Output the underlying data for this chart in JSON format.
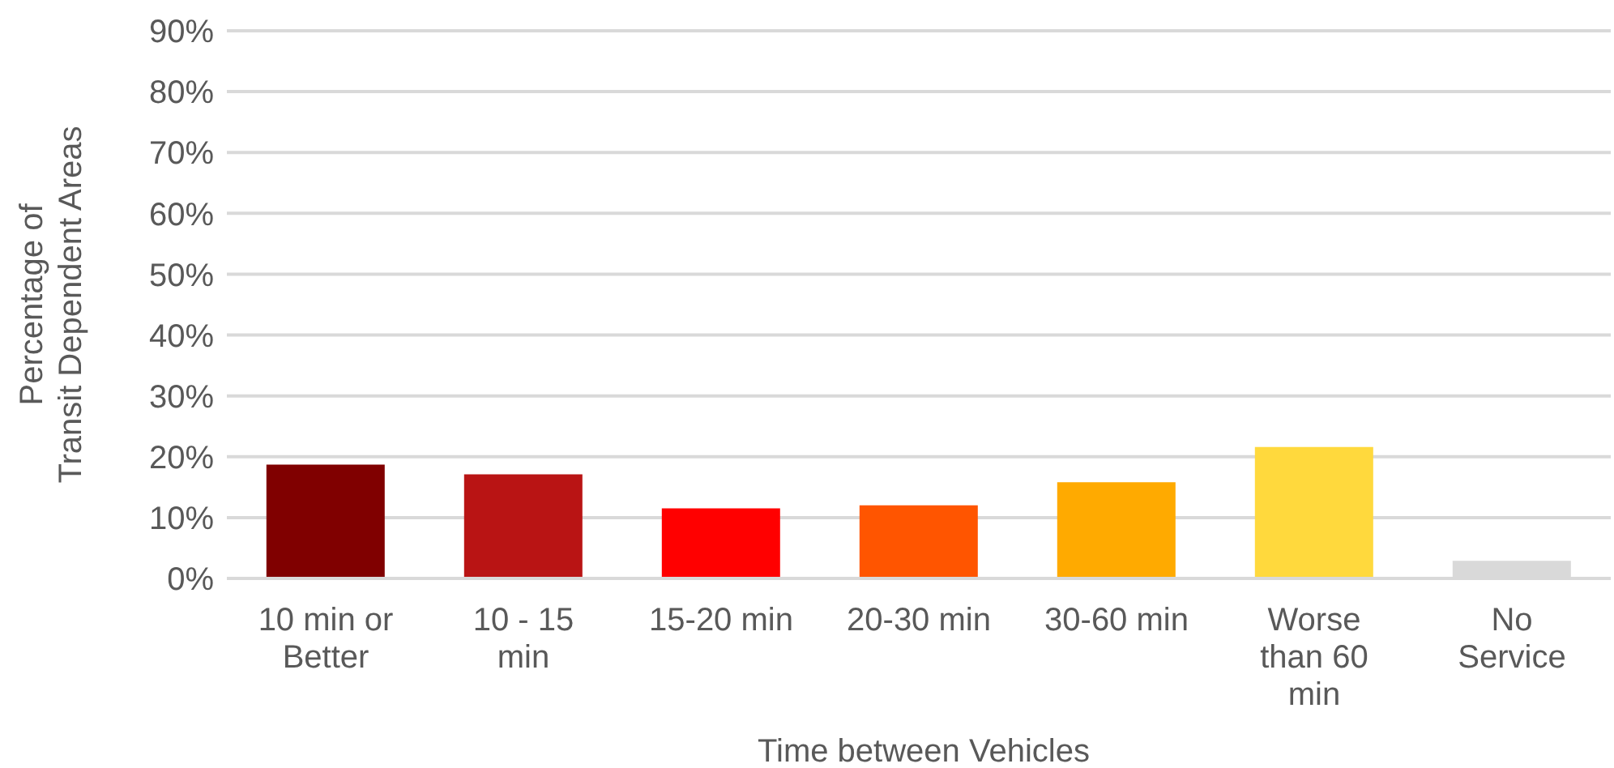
{
  "chart_data": {
    "type": "bar",
    "xlabel": "Time between Vehicles",
    "ylabel": "Percentage of\nTransit Dependent Areas",
    "categories": [
      "10 min or Better",
      "10 - 15 min",
      "15-20 min",
      "20-30 min",
      "30-60 min",
      "Worse than 60 min",
      "No Service"
    ],
    "values": [
      18.7,
      17.1,
      11.5,
      12.0,
      15.8,
      21.6,
      2.9
    ],
    "colors": [
      "#800000",
      "#b91414",
      "#ff0000",
      "#ff5500",
      "#ffaa00",
      "#ffd93d",
      "#d9d9d9"
    ],
    "ylim": [
      0,
      90
    ],
    "yticks": [
      {
        "value": 0,
        "label": "0%"
      },
      {
        "value": 10,
        "label": "10%"
      },
      {
        "value": 20,
        "label": "20%"
      },
      {
        "value": 30,
        "label": "30%"
      },
      {
        "value": 40,
        "label": "40%"
      },
      {
        "value": 50,
        "label": "50%"
      },
      {
        "value": 60,
        "label": "60%"
      },
      {
        "value": 70,
        "label": "70%"
      },
      {
        "value": 80,
        "label": "80%"
      },
      {
        "value": 90,
        "label": "90%"
      }
    ],
    "grid": "y",
    "legend": false
  }
}
